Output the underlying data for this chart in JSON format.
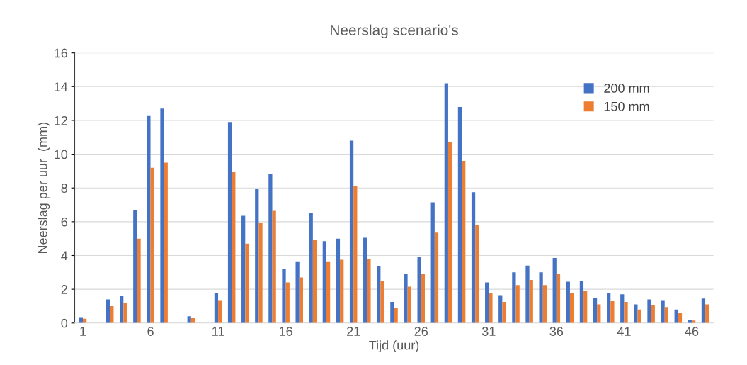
{
  "chart_data": {
    "type": "bar",
    "title": "Neerslag scenario's",
    "xlabel": "Tijd (uur)",
    "ylabel": "Neerslag per uur  (mm)",
    "categories": [
      "1",
      null,
      null,
      null,
      null,
      "6",
      null,
      null,
      null,
      null,
      "11",
      null,
      null,
      null,
      null,
      "16",
      null,
      null,
      null,
      null,
      "21",
      null,
      null,
      null,
      null,
      "26",
      null,
      null,
      null,
      null,
      "31",
      null,
      null,
      null,
      null,
      "36",
      null,
      null,
      null,
      null,
      "41",
      null,
      null,
      null,
      null,
      "46",
      null
    ],
    "series": [
      {
        "name": "200 mm",
        "color": "#4472c4",
        "values": [
          0.35,
          0,
          1.4,
          1.6,
          6.7,
          12.3,
          12.7,
          0,
          0.4,
          0,
          1.8,
          11.9,
          6.35,
          7.95,
          8.85,
          3.2,
          3.65,
          6.5,
          4.85,
          5.0,
          10.8,
          5.05,
          3.35,
          1.25,
          2.9,
          3.9,
          7.15,
          14.2,
          12.8,
          7.75,
          2.4,
          1.65,
          3.0,
          3.4,
          3.0,
          3.85,
          2.45,
          2.5,
          1.5,
          1.75,
          1.7,
          1.1,
          1.4,
          1.35,
          0.8,
          0.2,
          1.45
        ]
      },
      {
        "name": "150 mm",
        "color": "#ed7d31",
        "values": [
          0.25,
          0,
          1.0,
          1.2,
          5.0,
          9.2,
          9.5,
          0,
          0.3,
          0,
          1.35,
          8.95,
          4.7,
          5.95,
          6.65,
          2.4,
          2.7,
          4.9,
          3.65,
          3.75,
          8.1,
          3.8,
          2.5,
          0.9,
          2.15,
          2.9,
          5.35,
          10.7,
          9.6,
          5.8,
          1.8,
          1.25,
          2.25,
          2.55,
          2.25,
          2.9,
          1.8,
          1.9,
          1.1,
          1.3,
          1.25,
          0.8,
          1.05,
          0.95,
          0.6,
          0.15,
          1.1
        ]
      }
    ],
    "ylim": [
      0,
      16
    ],
    "yticks": [
      0,
      2,
      4,
      6,
      8,
      10,
      12,
      14,
      16
    ],
    "grid": "y",
    "legend": "top right"
  }
}
